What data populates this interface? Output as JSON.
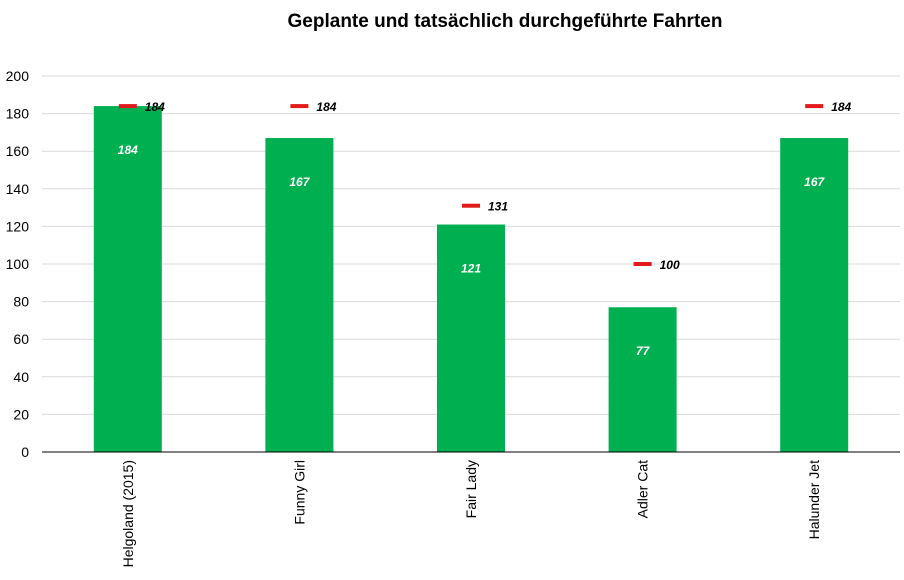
{
  "chart_data": {
    "type": "bar",
    "title": "Geplante und tatsächlich durchgeführte Fahrten",
    "xlabel": "",
    "ylabel": "",
    "categories": [
      "Helgoland (2015)",
      "Funny Girl",
      "Fair Lady",
      "Adler Cat",
      "Halunder Jet"
    ],
    "series": [
      {
        "values": [
          184,
          167,
          121,
          77,
          167
        ],
        "color": "#00b050",
        "kind": "bar"
      },
      {
        "values": [
          184,
          184,
          131,
          100,
          184
        ],
        "color": "#e31a1c",
        "kind": "marker"
      }
    ],
    "ylim": [
      0,
      200
    ],
    "yticks": [
      0,
      20,
      40,
      60,
      80,
      100,
      120,
      140,
      160,
      180,
      200
    ],
    "grid": true,
    "legend": "none"
  }
}
